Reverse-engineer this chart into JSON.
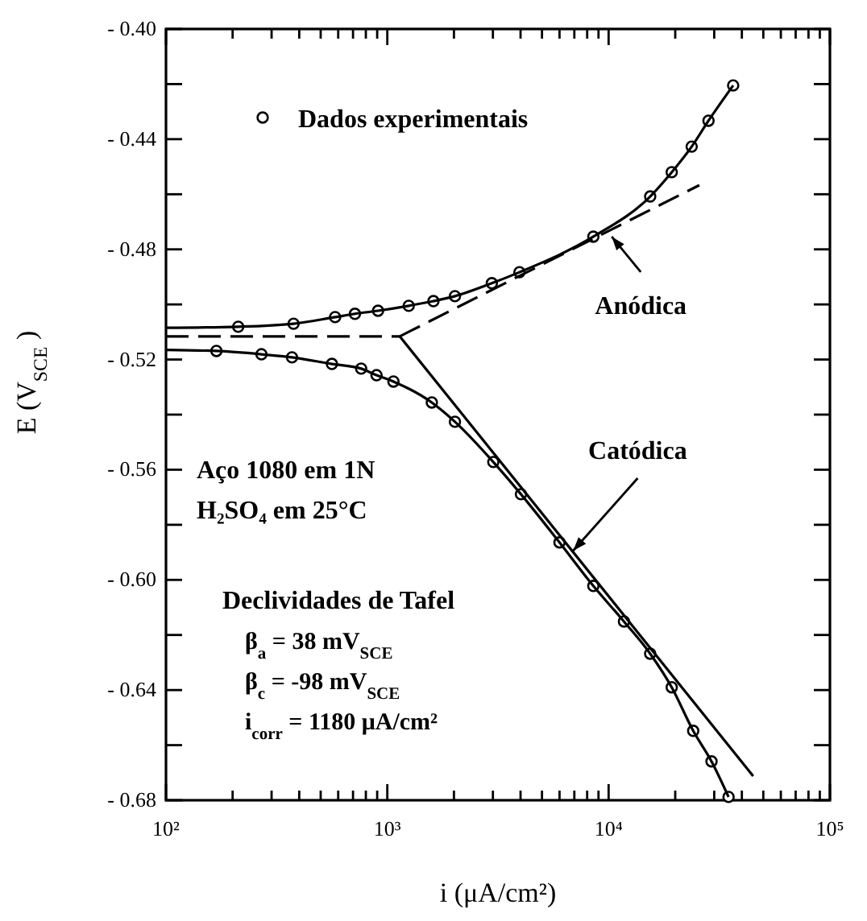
{
  "chart_data": {
    "type": "line",
    "xlabel": "i (μA/cm²)",
    "ylabel": "E (V$_{SCE}$)",
    "log": "x",
    "grid": false,
    "legend": "top left",
    "xlim": [
      100,
      100000
    ],
    "ylim": [
      -0.68,
      -0.4
    ],
    "xticks": [
      {
        "value": 100,
        "label": "10²"
      },
      {
        "value": 200,
        "label": null
      },
      {
        "value": 300,
        "label": null
      },
      {
        "value": 400,
        "label": null
      },
      {
        "value": 500,
        "label": null
      },
      {
        "value": 600,
        "label": null
      },
      {
        "value": 700,
        "label": null
      },
      {
        "value": 800,
        "label": null
      },
      {
        "value": 900,
        "label": null
      },
      {
        "value": 1000,
        "label": "10³"
      },
      {
        "value": 2000,
        "label": null
      },
      {
        "value": 3000,
        "label": null
      },
      {
        "value": 4000,
        "label": null
      },
      {
        "value": 5000,
        "label": null
      },
      {
        "value": 6000,
        "label": null
      },
      {
        "value": 7000,
        "label": null
      },
      {
        "value": 8000,
        "label": null
      },
      {
        "value": 9000,
        "label": null
      },
      {
        "value": 10000,
        "label": "10⁴"
      },
      {
        "value": 20000,
        "label": null
      },
      {
        "value": 30000,
        "label": null
      },
      {
        "value": 40000,
        "label": null
      },
      {
        "value": 50000,
        "label": null
      },
      {
        "value": 60000,
        "label": null
      },
      {
        "value": 70000,
        "label": null
      },
      {
        "value": 80000,
        "label": null
      },
      {
        "value": 90000,
        "label": null
      },
      {
        "value": 100000,
        "label": "10⁵"
      }
    ],
    "yticks": [
      {
        "value": -0.4,
        "label": "- 0.40"
      },
      {
        "value": -0.42,
        "label": null
      },
      {
        "value": -0.44,
        "label": "- 0.44"
      },
      {
        "value": -0.46,
        "label": null
      },
      {
        "value": -0.48,
        "label": "- 0.48"
      },
      {
        "value": -0.5,
        "label": null
      },
      {
        "value": -0.52,
        "label": "- 0.52"
      },
      {
        "value": -0.54,
        "label": null
      },
      {
        "value": -0.56,
        "label": "- 0.56"
      },
      {
        "value": -0.58,
        "label": null
      },
      {
        "value": -0.6,
        "label": "- 0.60"
      },
      {
        "value": -0.62,
        "label": null
      },
      {
        "value": -0.64,
        "label": "- 0.64"
      },
      {
        "value": -0.66,
        "label": null
      },
      {
        "value": -0.68,
        "label": "- 0.68"
      }
    ],
    "series": [
      {
        "name": "Dados experimentais",
        "type": "scatter",
        "marker": "circle",
        "color": "#000000",
        "x": [
          212,
          377,
          581,
          714,
          908,
          1250,
          1616,
          2021,
          2967,
          3955,
          8530,
          15410,
          19280,
          23730,
          28270,
          36540,
          169,
          270,
          371,
          562,
          762,
          894,
          1066,
          1589,
          2021,
          3013,
          4017,
          5998,
          8530,
          11730,
          15410,
          19280,
          24110,
          29170,
          34830
        ],
        "values": [
          -0.5081,
          -0.507,
          -0.5046,
          -0.5034,
          -0.5023,
          -0.5005,
          -0.4988,
          -0.497,
          -0.4923,
          -0.4883,
          -0.4754,
          -0.4608,
          -0.452,
          -0.4427,
          -0.4333,
          -0.4205,
          -0.5169,
          -0.5181,
          -0.5192,
          -0.5216,
          -0.5233,
          -0.5257,
          -0.528,
          -0.5356,
          -0.5426,
          -0.5572,
          -0.5689,
          -0.5864,
          -0.6022,
          -0.6151,
          -0.6268,
          -0.639,
          -0.6548,
          -0.6659,
          -0.6788
        ]
      },
      {
        "marker": "none",
        "line_style": "solid",
        "color": "#000000",
        "x": [
          100,
          212,
          377,
          581,
          714,
          908,
          1250,
          1616,
          2021,
          2967,
          3955,
          8530,
          15410,
          19280,
          23730,
          28270,
          36540
        ],
        "values": [
          -0.5085,
          -0.5081,
          -0.507,
          -0.5046,
          -0.5034,
          -0.5023,
          -0.5005,
          -0.4988,
          -0.497,
          -0.4923,
          -0.4883,
          -0.4754,
          -0.4608,
          -0.452,
          -0.4427,
          -0.4333,
          -0.4205
        ]
      },
      {
        "marker": "none",
        "line_style": "solid",
        "color": "#000000",
        "x": [
          100,
          169,
          270,
          371,
          562,
          762,
          894,
          1066,
          1589,
          2021,
          3013,
          4017,
          5998,
          8530,
          11730,
          15410,
          19280,
          24110,
          29170,
          34830
        ],
        "values": [
          -0.5165,
          -0.5169,
          -0.5181,
          -0.5192,
          -0.5216,
          -0.5233,
          -0.5257,
          -0.528,
          -0.5356,
          -0.5426,
          -0.5572,
          -0.5689,
          -0.5864,
          -0.6022,
          -0.6151,
          -0.6268,
          -0.639,
          -0.6548,
          -0.6659,
          -0.6788
        ]
      },
      {
        "marker": "none",
        "line_style": "dashed",
        "color": "#000000",
        "x": [
          100,
          1138
        ],
        "values": [
          -0.5116,
          -0.5116
        ]
      },
      {
        "marker": "none",
        "line_style": "dashed",
        "color": "#000000",
        "x": [
          1138,
          25700
        ],
        "values": [
          -0.5116,
          -0.4567
        ]
      },
      {
        "marker": "none",
        "line_style": "solid",
        "color": "#000000",
        "x": [
          1138,
          44980
        ],
        "values": [
          -0.5116,
          -0.6712
        ]
      }
    ],
    "annotations": [
      {
        "text": "Anódica",
        "x": 10330,
        "y": -0.4754
      },
      {
        "text": "Catódica",
        "x": 6918,
        "y": -0.5894
      },
      "Aço 1080 em 1N",
      "H₂SO₄ em 25°C",
      "Declividades de Tafel",
      "β$_{a}$ = 38 mV$_{SCE}$",
      "β$_{c}$ = -98 mV$_{SCE}$",
      "i$_{corr}$ = 1180 μA/cm²"
    ]
  }
}
